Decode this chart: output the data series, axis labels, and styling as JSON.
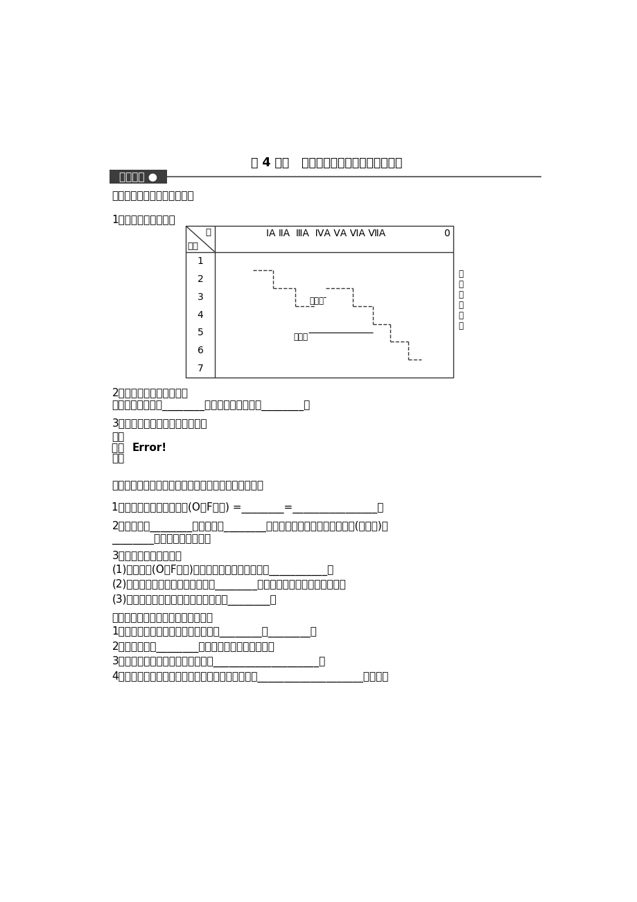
{
  "title": "第 4 课时   元素周期表和元素周期律的应用",
  "section1_header": "基础落实 ●",
  "part1_title": "一、元素的金属性和非金属性",
  "q1_title": "1．元素周期表的分区",
  "table_periods": [
    "1",
    "2",
    "3",
    "4",
    "5",
    "6",
    "7"
  ],
  "table_col_header": "ⅠA ⅡA  ⅢA  ⅣA ⅤA ⅥA ⅦA",
  "table_right_label": "稀有气体元素",
  "q2_title": "2．分界线附近元素的性质",
  "q2_text": "既能表现出一定的________，又能表现出一定的________。",
  "q3_title": "3．元素金属性和非金属性的递变",
  "q3_line1": "元素",
  "q3_line2": "性质 Error!",
  "q3_line3": "递变",
  "part2_title": "二、元素的化合价与元素在周期表中的位置之间的关系",
  "p2_q1": "1．主族元素最高正化合价(O、F除外) =________=________________。",
  "p2_q2a": "2．金属元素________负化合价，________形成简单的阴离子；非金属元素(除氢外)，",
  "p2_q2b": "________形成简单的阳离子。",
  "p2_q3_title": "3．非金属元素的化合价",
  "p2_q3_1": "(1)最高正价(O、F除外)等于原子所能失去或偏移的___________。",
  "p2_q3_2": "(2)最低负价的绝对値等于使它达到________稳定结构所需得到的电子数目。",
  "p2_q3_3": "(3)最高正价与最低负价绝对値之和等于________。",
  "part3_title": "三、元素周期表和元素周期律的应用",
  "p3_q1": "1．根据元素在周期表中的位置推测其________和________。",
  "p3_q2": "2．根据元素的________推测它在周期表中的位置。",
  "p3_q3": "3．指导新元素的发现及预测它们的____________________。",
  "p3_q4": "4．指导其他与化学相关的科学技术。如在周期表中____________________，可以找",
  "bg_color": "#ffffff",
  "header_bg": "#3d3d3d"
}
